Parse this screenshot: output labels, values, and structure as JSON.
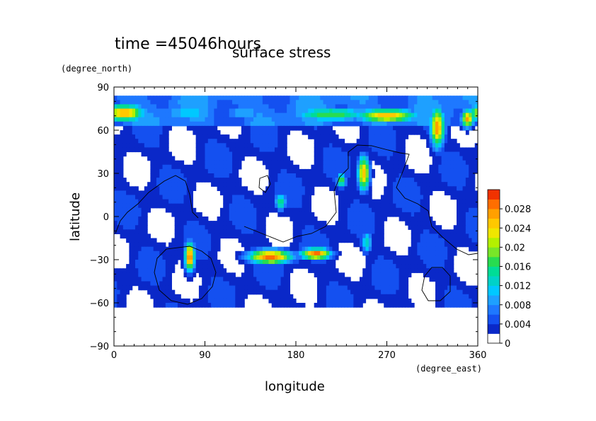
{
  "chart_data": {
    "type": "heatmap",
    "title": "surface stress",
    "time_label": "time =45046hours",
    "xlabel": "longitude",
    "ylabel": "latitude",
    "x_units": "(degree_east)",
    "y_units": "(degree_north)",
    "xlim": [
      0,
      360
    ],
    "ylim": [
      -90,
      90
    ],
    "x_ticks": [
      "0",
      "90",
      "180",
      "270",
      "360"
    ],
    "y_ticks": [
      "90",
      "60",
      "30",
      "0",
      "−30",
      "−60",
      "−90"
    ],
    "x_tick_values": [
      0,
      90,
      180,
      270,
      360
    ],
    "y_tick_values": [
      90,
      60,
      30,
      0,
      -30,
      -60,
      -90
    ],
    "colorbar": {
      "tick_labels": [
        "0",
        "0.004",
        "0.008",
        "0.012",
        "0.016",
        "0.02",
        "0.024",
        "0.028"
      ],
      "levels": [
        0,
        0.002,
        0.004,
        0.006,
        0.008,
        0.01,
        0.012,
        0.014,
        0.016,
        0.018,
        0.02,
        0.022,
        0.024,
        0.026,
        0.028,
        0.03
      ],
      "colors": [
        "#ffffff",
        "#0a28c8",
        "#1450f0",
        "#1e78ff",
        "#1ea0ff",
        "#00c8ff",
        "#00d2c8",
        "#00dc96",
        "#28dc50",
        "#78e628",
        "#b4f000",
        "#f0e600",
        "#ffc800",
        "#ffa000",
        "#ff6e00",
        "#f03200"
      ]
    },
    "hotspots": [
      {
        "lon": 10,
        "lat": 72,
        "value": 0.027,
        "dx": 20,
        "dy": 6
      },
      {
        "lon": 75,
        "lat": 72,
        "value": 0.012,
        "dx": 30,
        "dy": 5
      },
      {
        "lon": 130,
        "lat": 72,
        "value": 0.01,
        "dx": 25,
        "dy": 5
      },
      {
        "lon": 215,
        "lat": 71,
        "value": 0.018,
        "dx": 40,
        "dy": 5
      },
      {
        "lon": 270,
        "lat": 70,
        "value": 0.026,
        "dx": 30,
        "dy": 5
      },
      {
        "lon": 320,
        "lat": 62,
        "value": 0.028,
        "dx": 7,
        "dy": 14
      },
      {
        "lon": 350,
        "lat": 68,
        "value": 0.028,
        "dx": 6,
        "dy": 6
      },
      {
        "lon": 247,
        "lat": 30,
        "value": 0.026,
        "dx": 6,
        "dy": 12
      },
      {
        "lon": 75,
        "lat": -28,
        "value": 0.03,
        "dx": 5,
        "dy": 10
      },
      {
        "lon": 155,
        "lat": -28,
        "value": 0.03,
        "dx": 22,
        "dy": 5
      },
      {
        "lon": 200,
        "lat": -26,
        "value": 0.03,
        "dx": 15,
        "dy": 4
      },
      {
        "lon": 225,
        "lat": 25,
        "value": 0.018,
        "dx": 5,
        "dy": 5
      },
      {
        "lon": 165,
        "lat": 10,
        "value": 0.016,
        "dx": 6,
        "dy": 6
      },
      {
        "lon": 250,
        "lat": -18,
        "value": 0.014,
        "dx": 5,
        "dy": 8
      }
    ]
  }
}
